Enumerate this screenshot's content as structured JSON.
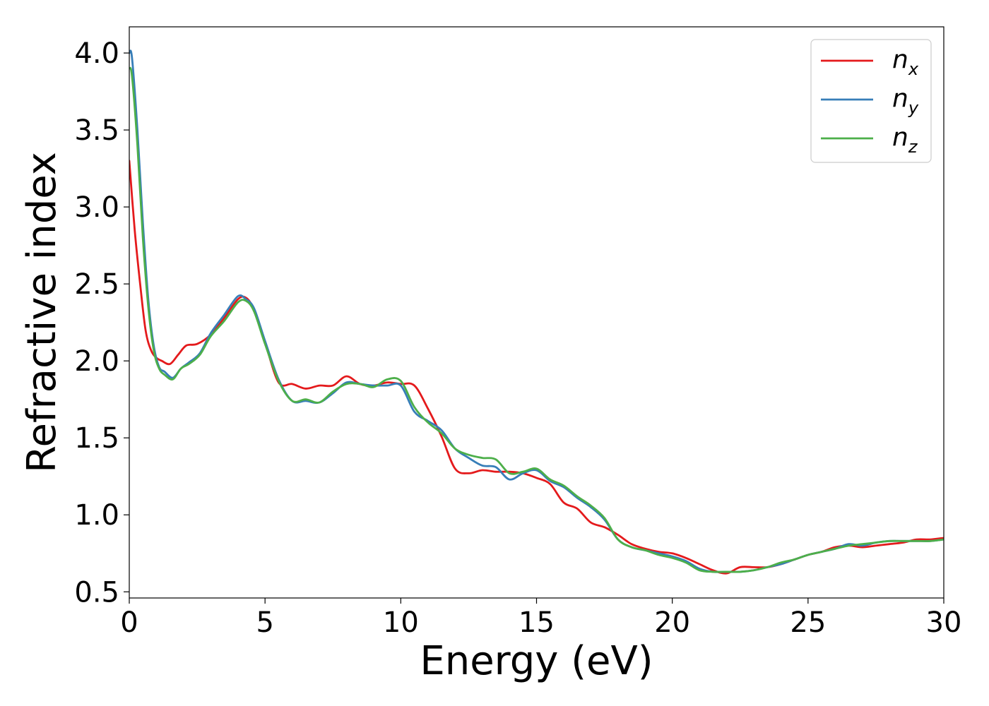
{
  "chart_data": {
    "type": "line",
    "xlabel": "Energy (eV)",
    "ylabel": "Refractive index",
    "xlim": [
      0,
      30
    ],
    "ylim": [
      0.46,
      4.17
    ],
    "xticks": [
      0,
      5,
      10,
      15,
      20,
      25,
      30
    ],
    "xtick_labels": [
      "0",
      "5",
      "10",
      "15",
      "20",
      "25",
      "30"
    ],
    "yticks": [
      0.5,
      1.0,
      1.5,
      2.0,
      2.5,
      3.0,
      3.5,
      4.0
    ],
    "ytick_labels": [
      "0.5",
      "1.0",
      "1.5",
      "2.0",
      "2.5",
      "3.0",
      "3.5",
      "4.0"
    ],
    "grid": false,
    "legend_position": "top-right",
    "series": [
      {
        "name": "n_x",
        "label_base": "n",
        "label_sub": "x",
        "color": "#e41a1c",
        "x": [
          0,
          0.2,
          0.4,
          0.6,
          0.8,
          1.0,
          1.2,
          1.5,
          1.8,
          2.1,
          2.5,
          3.0,
          3.5,
          4.0,
          4.3,
          4.6,
          5.0,
          5.5,
          6.0,
          6.5,
          7.0,
          7.5,
          8.0,
          8.5,
          9.0,
          9.5,
          10.0,
          10.5,
          11.0,
          11.5,
          12.0,
          12.5,
          13.0,
          13.5,
          14.0,
          14.5,
          15.0,
          15.5,
          16.0,
          16.5,
          17.0,
          17.5,
          18.0,
          18.5,
          19.0,
          19.5,
          20.0,
          20.5,
          21.0,
          21.5,
          22.0,
          22.5,
          23.0,
          23.5,
          24.0,
          24.5,
          25.0,
          25.5,
          26.0,
          26.5,
          27.0,
          27.5,
          28.0,
          28.5,
          29.0,
          29.5,
          30.0
        ],
        "y": [
          3.3,
          2.85,
          2.5,
          2.2,
          2.07,
          2.02,
          2.0,
          1.98,
          2.04,
          2.1,
          2.11,
          2.17,
          2.28,
          2.4,
          2.41,
          2.33,
          2.12,
          1.86,
          1.85,
          1.82,
          1.84,
          1.84,
          1.9,
          1.85,
          1.84,
          1.86,
          1.85,
          1.84,
          1.69,
          1.51,
          1.3,
          1.27,
          1.29,
          1.28,
          1.28,
          1.27,
          1.24,
          1.2,
          1.08,
          1.04,
          0.95,
          0.92,
          0.87,
          0.81,
          0.78,
          0.76,
          0.75,
          0.72,
          0.68,
          0.64,
          0.62,
          0.66,
          0.66,
          0.66,
          0.68,
          0.71,
          0.74,
          0.76,
          0.79,
          0.8,
          0.79,
          0.8,
          0.81,
          0.82,
          0.84,
          0.84,
          0.85
        ]
      },
      {
        "name": "n_y",
        "label_base": "n",
        "label_sub": "y",
        "color": "#377eb8",
        "x": [
          0,
          0.1,
          0.3,
          0.5,
          0.7,
          0.9,
          1.1,
          1.3,
          1.6,
          1.9,
          2.2,
          2.6,
          3.0,
          3.5,
          4.0,
          4.3,
          4.6,
          5.0,
          5.5,
          6.0,
          6.5,
          7.0,
          7.5,
          8.0,
          8.5,
          9.0,
          9.5,
          10.0,
          10.5,
          11.0,
          11.5,
          12.0,
          12.5,
          13.0,
          13.5,
          14.0,
          14.5,
          15.0,
          15.5,
          16.0,
          16.5,
          17.0,
          17.5,
          18.0,
          18.5,
          19.0,
          19.5,
          20.0,
          20.5,
          21.0,
          21.5,
          22.0,
          22.5,
          23.0,
          23.5,
          24.0,
          24.5,
          25.0,
          25.5,
          26.0,
          26.5,
          27.0,
          27.5,
          28.0,
          28.5,
          29.0,
          29.5,
          30.0
        ],
        "y": [
          4.0,
          3.97,
          3.5,
          2.9,
          2.4,
          2.1,
          1.96,
          1.93,
          1.89,
          1.95,
          1.99,
          2.05,
          2.18,
          2.3,
          2.42,
          2.4,
          2.34,
          2.13,
          1.88,
          1.74,
          1.74,
          1.73,
          1.79,
          1.86,
          1.85,
          1.84,
          1.84,
          1.84,
          1.67,
          1.61,
          1.55,
          1.43,
          1.37,
          1.32,
          1.31,
          1.23,
          1.27,
          1.29,
          1.22,
          1.18,
          1.11,
          1.05,
          0.97,
          0.84,
          0.79,
          0.77,
          0.75,
          0.73,
          0.7,
          0.65,
          0.63,
          0.63,
          0.63,
          0.64,
          0.66,
          0.68,
          0.71,
          0.74,
          0.76,
          0.78,
          0.81,
          0.8,
          0.82,
          0.83,
          0.83,
          0.83,
          0.83,
          0.84
        ]
      },
      {
        "name": "n_z",
        "label_base": "n",
        "label_sub": "z",
        "color": "#4daf4a",
        "x": [
          0,
          0.1,
          0.3,
          0.5,
          0.7,
          0.9,
          1.1,
          1.3,
          1.6,
          1.9,
          2.2,
          2.6,
          3.0,
          3.5,
          4.0,
          4.3,
          4.6,
          5.0,
          5.5,
          6.0,
          6.5,
          7.0,
          7.5,
          8.0,
          8.5,
          9.0,
          9.5,
          10.0,
          10.5,
          11.0,
          11.5,
          12.0,
          12.5,
          13.0,
          13.5,
          14.0,
          14.5,
          15.0,
          15.5,
          16.0,
          16.5,
          17.0,
          17.5,
          18.0,
          18.5,
          19.0,
          19.5,
          20.0,
          20.5,
          21.0,
          21.5,
          22.0,
          22.5,
          23.0,
          23.5,
          24.0,
          24.5,
          25.0,
          25.5,
          26.0,
          26.5,
          27.0,
          27.5,
          28.0,
          28.5,
          29.0,
          29.5,
          30.0
        ],
        "y": [
          3.9,
          3.85,
          3.4,
          2.8,
          2.35,
          2.07,
          1.95,
          1.91,
          1.88,
          1.95,
          1.98,
          2.04,
          2.16,
          2.26,
          2.38,
          2.39,
          2.32,
          2.11,
          1.87,
          1.74,
          1.75,
          1.73,
          1.8,
          1.85,
          1.85,
          1.83,
          1.88,
          1.87,
          1.7,
          1.6,
          1.53,
          1.43,
          1.39,
          1.37,
          1.36,
          1.27,
          1.28,
          1.3,
          1.23,
          1.19,
          1.12,
          1.06,
          0.98,
          0.84,
          0.79,
          0.77,
          0.74,
          0.72,
          0.69,
          0.64,
          0.63,
          0.63,
          0.63,
          0.64,
          0.66,
          0.69,
          0.71,
          0.74,
          0.76,
          0.78,
          0.8,
          0.81,
          0.82,
          0.83,
          0.83,
          0.83,
          0.83,
          0.84
        ]
      }
    ]
  }
}
